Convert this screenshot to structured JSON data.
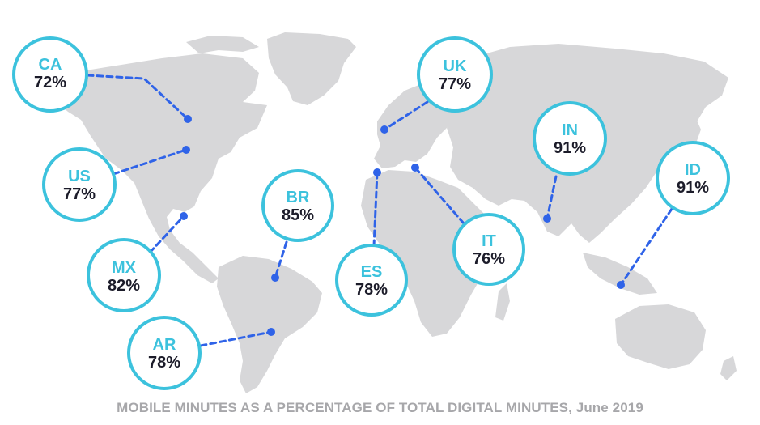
{
  "colors": {
    "ring": "#3cc2dd",
    "code": "#3cc2dd",
    "leader": "#2f63e8",
    "land": "#d7d7d9",
    "caption": "#a7a7aa"
  },
  "markers": [
    {
      "code": "CA",
      "value": "72%"
    },
    {
      "code": "US",
      "value": "77%"
    },
    {
      "code": "MX",
      "value": "82%"
    },
    {
      "code": "AR",
      "value": "78%"
    },
    {
      "code": "BR",
      "value": "85%"
    },
    {
      "code": "ES",
      "value": "78%"
    },
    {
      "code": "UK",
      "value": "77%"
    },
    {
      "code": "IT",
      "value": "76%"
    },
    {
      "code": "IN",
      "value": "91%"
    },
    {
      "code": "ID",
      "value": "91%"
    }
  ],
  "caption": "MOBILE MINUTES AS A PERCENTAGE OF TOTAL DIGITAL MINUTES, June 2019"
}
